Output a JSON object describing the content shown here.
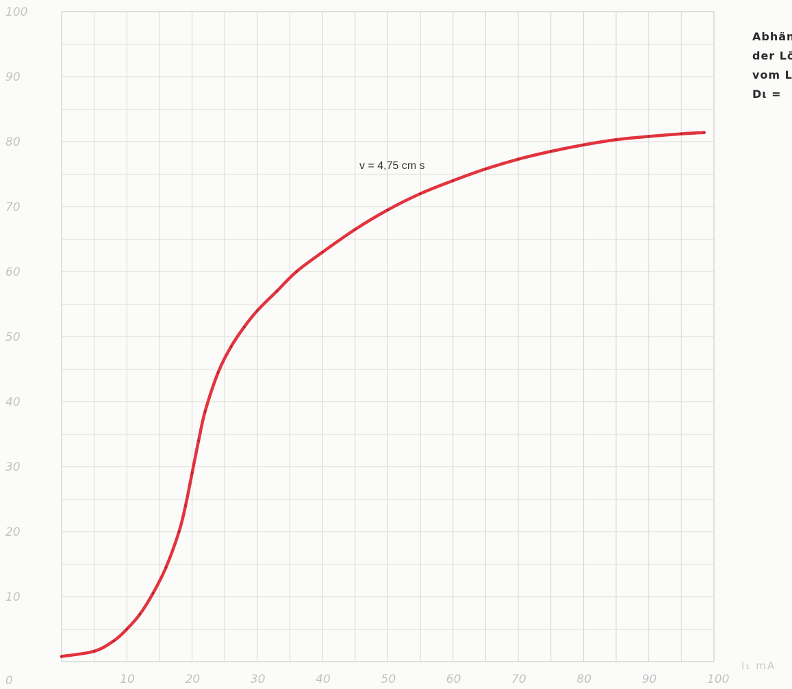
{
  "caption": {
    "lines": [
      "Abhän",
      "der Lö",
      "vom L",
      "Dι ="
    ]
  },
  "chart_data": {
    "type": "line",
    "title": "",
    "xlabel": "I₁ mA",
    "ylabel": "",
    "xlim": [
      0,
      100
    ],
    "ylim": [
      0,
      100
    ],
    "grid": true,
    "x_ticks": [
      "10",
      "20",
      "30",
      "40",
      "50",
      "60",
      "70",
      "80",
      "90",
      "100"
    ],
    "y_ticks": [
      "0",
      "10",
      "20",
      "30",
      "40",
      "50",
      "60",
      "70",
      "80",
      "90",
      "100"
    ],
    "annotations": [
      "v = 4,75 cm s"
    ],
    "colors": {
      "series": "#e2343e",
      "grid": "#d9d9d4",
      "ticks": "#c2c2c2"
    },
    "series": [
      {
        "x": [
          0,
          5,
          8,
          10,
          12,
          14,
          16,
          18,
          19,
          20,
          21,
          22,
          24,
          26,
          28,
          30,
          33,
          36,
          40,
          45,
          50,
          55,
          60,
          65,
          70,
          75,
          80,
          85,
          90,
          95,
          98.5
        ],
        "y": [
          0.8,
          1.6,
          3.2,
          5,
          7.3,
          10.5,
          14.5,
          20,
          24,
          29,
          34,
          38.5,
          44.5,
          48.5,
          51.5,
          54,
          57,
          60,
          63,
          66.5,
          69.5,
          72,
          74,
          75.8,
          77.3,
          78.5,
          79.5,
          80.3,
          80.8,
          81.2,
          81.4
        ]
      }
    ]
  }
}
